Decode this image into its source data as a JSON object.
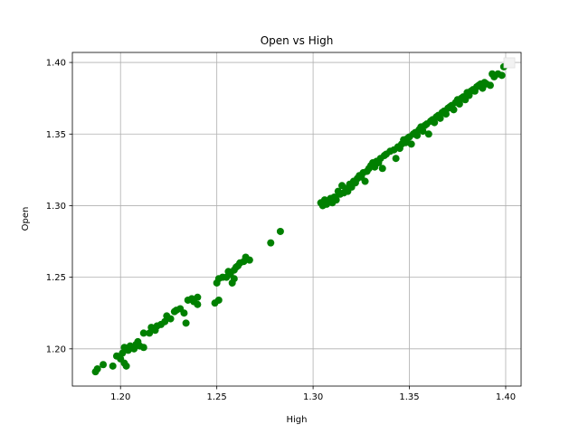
{
  "chart_data": {
    "type": "scatter",
    "title": "Open vs High",
    "xlabel": "High",
    "ylabel": "Open",
    "xlim": [
      1.175,
      1.408
    ],
    "ylim": [
      1.174,
      1.407
    ],
    "xticks": [
      1.2,
      1.25,
      1.3,
      1.35,
      1.4
    ],
    "yticks": [
      1.2,
      1.25,
      1.3,
      1.35,
      1.4
    ],
    "xtick_labels": [
      "1.20",
      "1.25",
      "1.30",
      "1.35",
      "1.40"
    ],
    "ytick_labels": [
      "1.20",
      "1.25",
      "1.30",
      "1.35",
      "1.40"
    ],
    "grid": true,
    "legend": "top-right, empty",
    "colors": {
      "points": "#008000",
      "grid": "#b0b0b0",
      "axes": "#000000"
    },
    "series": [
      {
        "points": [
          [
            1.187,
            1.184
          ],
          [
            1.188,
            1.186
          ],
          [
            1.191,
            1.189
          ],
          [
            1.196,
            1.188
          ],
          [
            1.198,
            1.195
          ],
          [
            1.2,
            1.193
          ],
          [
            1.201,
            1.197
          ],
          [
            1.202,
            1.19
          ],
          [
            1.202,
            1.201
          ],
          [
            1.203,
            1.188
          ],
          [
            1.204,
            1.199
          ],
          [
            1.205,
            1.202
          ],
          [
            1.207,
            1.2
          ],
          [
            1.208,
            1.203
          ],
          [
            1.209,
            1.205
          ],
          [
            1.21,
            1.202
          ],
          [
            1.212,
            1.201
          ],
          [
            1.212,
            1.211
          ],
          [
            1.215,
            1.211
          ],
          [
            1.216,
            1.215
          ],
          [
            1.218,
            1.213
          ],
          [
            1.219,
            1.216
          ],
          [
            1.221,
            1.217
          ],
          [
            1.223,
            1.219
          ],
          [
            1.224,
            1.223
          ],
          [
            1.226,
            1.221
          ],
          [
            1.228,
            1.226
          ],
          [
            1.229,
            1.227
          ],
          [
            1.231,
            1.228
          ],
          [
            1.233,
            1.225
          ],
          [
            1.234,
            1.218
          ],
          [
            1.235,
            1.234
          ],
          [
            1.237,
            1.235
          ],
          [
            1.238,
            1.233
          ],
          [
            1.24,
            1.231
          ],
          [
            1.24,
            1.236
          ],
          [
            1.249,
            1.232
          ],
          [
            1.25,
            1.246
          ],
          [
            1.251,
            1.234
          ],
          [
            1.251,
            1.249
          ],
          [
            1.253,
            1.25
          ],
          [
            1.255,
            1.25
          ],
          [
            1.256,
            1.254
          ],
          [
            1.257,
            1.252
          ],
          [
            1.258,
            1.246
          ],
          [
            1.259,
            1.249
          ],
          [
            1.259,
            1.255
          ],
          [
            1.26,
            1.257
          ],
          [
            1.261,
            1.258
          ],
          [
            1.262,
            1.26
          ],
          [
            1.264,
            1.261
          ],
          [
            1.265,
            1.264
          ],
          [
            1.267,
            1.262
          ],
          [
            1.278,
            1.274
          ],
          [
            1.283,
            1.282
          ],
          [
            1.304,
            1.302
          ],
          [
            1.305,
            1.3
          ],
          [
            1.306,
            1.304
          ],
          [
            1.307,
            1.301
          ],
          [
            1.308,
            1.303
          ],
          [
            1.309,
            1.305
          ],
          [
            1.31,
            1.302
          ],
          [
            1.311,
            1.306
          ],
          [
            1.312,
            1.304
          ],
          [
            1.313,
            1.31
          ],
          [
            1.314,
            1.308
          ],
          [
            1.315,
            1.314
          ],
          [
            1.316,
            1.309
          ],
          [
            1.317,
            1.312
          ],
          [
            1.318,
            1.31
          ],
          [
            1.319,
            1.315
          ],
          [
            1.32,
            1.313
          ],
          [
            1.321,
            1.317
          ],
          [
            1.322,
            1.316
          ],
          [
            1.323,
            1.319
          ],
          [
            1.324,
            1.321
          ],
          [
            1.325,
            1.32
          ],
          [
            1.326,
            1.323
          ],
          [
            1.327,
            1.317
          ],
          [
            1.328,
            1.324
          ],
          [
            1.329,
            1.326
          ],
          [
            1.33,
            1.328
          ],
          [
            1.331,
            1.33
          ],
          [
            1.332,
            1.327
          ],
          [
            1.333,
            1.331
          ],
          [
            1.334,
            1.33
          ],
          [
            1.335,
            1.333
          ],
          [
            1.336,
            1.326
          ],
          [
            1.337,
            1.335
          ],
          [
            1.338,
            1.336
          ],
          [
            1.34,
            1.338
          ],
          [
            1.342,
            1.339
          ],
          [
            1.343,
            1.333
          ],
          [
            1.344,
            1.341
          ],
          [
            1.345,
            1.34
          ],
          [
            1.346,
            1.343
          ],
          [
            1.347,
            1.346
          ],
          [
            1.348,
            1.344
          ],
          [
            1.349,
            1.347
          ],
          [
            1.35,
            1.348
          ],
          [
            1.351,
            1.343
          ],
          [
            1.352,
            1.35
          ],
          [
            1.353,
            1.351
          ],
          [
            1.354,
            1.349
          ],
          [
            1.355,
            1.353
          ],
          [
            1.356,
            1.355
          ],
          [
            1.357,
            1.352
          ],
          [
            1.358,
            1.356
          ],
          [
            1.359,
            1.357
          ],
          [
            1.36,
            1.35
          ],
          [
            1.361,
            1.359
          ],
          [
            1.362,
            1.36
          ],
          [
            1.363,
            1.358
          ],
          [
            1.364,
            1.362
          ],
          [
            1.365,
            1.363
          ],
          [
            1.366,
            1.361
          ],
          [
            1.367,
            1.365
          ],
          [
            1.368,
            1.366
          ],
          [
            1.369,
            1.364
          ],
          [
            1.37,
            1.368
          ],
          [
            1.371,
            1.369
          ],
          [
            1.372,
            1.37
          ],
          [
            1.373,
            1.367
          ],
          [
            1.374,
            1.372
          ],
          [
            1.375,
            1.374
          ],
          [
            1.376,
            1.371
          ],
          [
            1.377,
            1.375
          ],
          [
            1.378,
            1.376
          ],
          [
            1.379,
            1.374
          ],
          [
            1.38,
            1.379
          ],
          [
            1.381,
            1.377
          ],
          [
            1.382,
            1.38
          ],
          [
            1.383,
            1.381
          ],
          [
            1.384,
            1.38
          ],
          [
            1.385,
            1.383
          ],
          [
            1.386,
            1.384
          ],
          [
            1.387,
            1.385
          ],
          [
            1.388,
            1.382
          ],
          [
            1.389,
            1.386
          ],
          [
            1.39,
            1.385
          ],
          [
            1.392,
            1.384
          ],
          [
            1.393,
            1.392
          ],
          [
            1.394,
            1.39
          ],
          [
            1.396,
            1.392
          ],
          [
            1.398,
            1.391
          ],
          [
            1.399,
            1.397
          ]
        ]
      }
    ]
  }
}
